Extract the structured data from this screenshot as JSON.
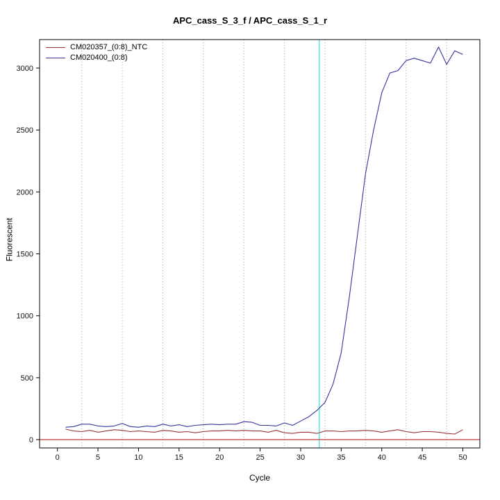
{
  "chart_data": {
    "type": "line",
    "title": "APC_cass_S_3_f / APC_cass_S_1_r",
    "xlabel": "Cycle",
    "ylabel": "Fluorescent",
    "xlim": [
      -2.2,
      52.1
    ],
    "ylim": [
      -67,
      3230
    ],
    "x_ticks": [
      0,
      5,
      10,
      15,
      20,
      25,
      30,
      35,
      40,
      45,
      50
    ],
    "y_ticks": [
      0,
      500,
      1000,
      1500,
      2000,
      2500,
      3000
    ],
    "grid": true,
    "grid_x": [
      3,
      8,
      13,
      18,
      23,
      28,
      33,
      38,
      43,
      48
    ],
    "grid_color": "#9e9e9e",
    "ct_line_x": 32.3,
    "ct_line_color": "#00e0e0",
    "threshold_y": 0,
    "threshold_color": "#c02020",
    "legend_position": "top-left",
    "series": [
      {
        "name": "CM020357_(0:8)_NTC",
        "color": "#993333",
        "x": [
          1,
          2,
          3,
          4,
          5,
          6,
          7,
          8,
          9,
          10,
          11,
          12,
          13,
          14,
          15,
          16,
          17,
          18,
          19,
          20,
          21,
          22,
          23,
          24,
          25,
          26,
          27,
          28,
          29,
          30,
          31,
          32,
          33,
          34,
          35,
          36,
          37,
          38,
          39,
          40,
          41,
          42,
          43,
          44,
          45,
          46,
          47,
          48,
          49,
          50
        ],
        "values": [
          85,
          70,
          65,
          75,
          60,
          70,
          80,
          75,
          65,
          70,
          65,
          60,
          75,
          70,
          60,
          65,
          55,
          65,
          70,
          70,
          75,
          70,
          75,
          70,
          70,
          60,
          75,
          55,
          50,
          60,
          60,
          50,
          70,
          70,
          65,
          70,
          70,
          75,
          70,
          60,
          70,
          80,
          65,
          55,
          65,
          65,
          60,
          50,
          45,
          80
        ]
      },
      {
        "name": "CM020400_(0:8)",
        "color": "#34349c",
        "x": [
          1,
          2,
          3,
          4,
          5,
          6,
          7,
          8,
          9,
          10,
          11,
          12,
          13,
          14,
          15,
          16,
          17,
          18,
          19,
          20,
          21,
          22,
          23,
          24,
          25,
          26,
          27,
          28,
          29,
          30,
          31,
          32,
          33,
          34,
          35,
          36,
          37,
          38,
          39,
          40,
          41,
          42,
          43,
          44,
          45,
          46,
          47,
          48,
          49,
          50
        ],
        "values": [
          100,
          105,
          125,
          125,
          110,
          105,
          110,
          130,
          105,
          100,
          110,
          105,
          125,
          110,
          120,
          105,
          115,
          120,
          125,
          120,
          125,
          125,
          145,
          140,
          115,
          115,
          110,
          135,
          115,
          150,
          185,
          235,
          300,
          450,
          700,
          1150,
          1650,
          2150,
          2500,
          2800,
          2960,
          2980,
          3060,
          3080,
          3060,
          3040,
          3170,
          3030,
          3140,
          3110
        ]
      }
    ]
  }
}
